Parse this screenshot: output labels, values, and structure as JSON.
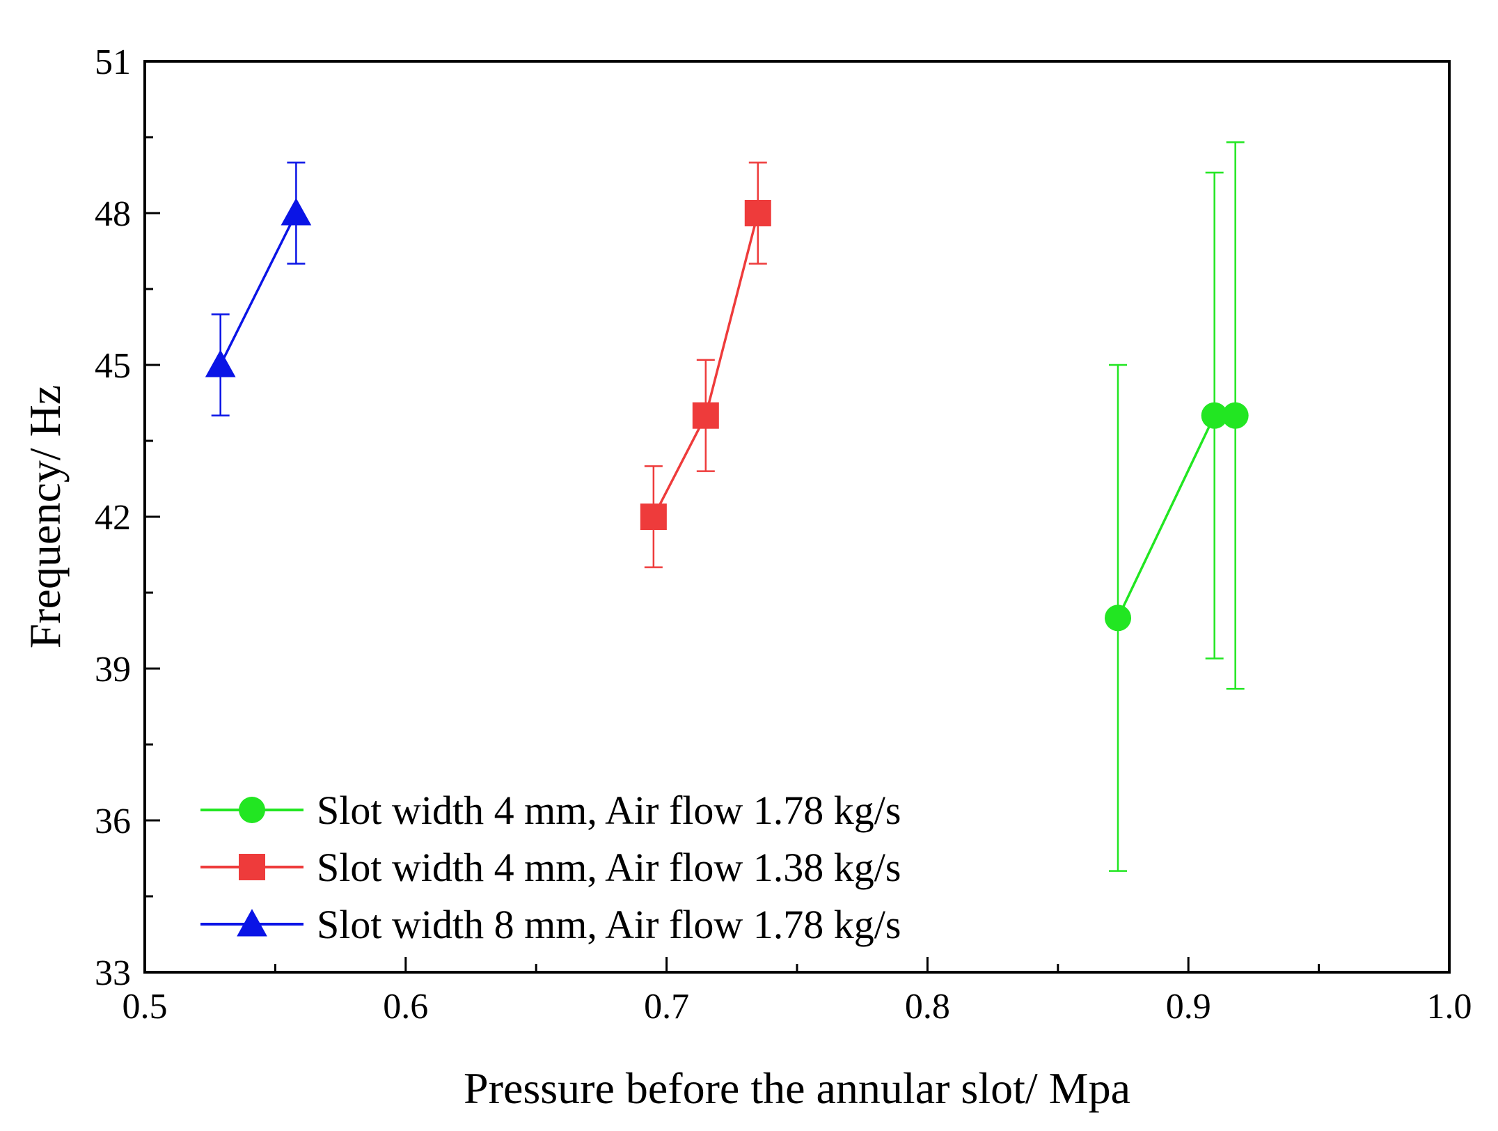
{
  "chart_data": {
    "type": "scatter",
    "title": "",
    "xlabel": "Pressure before the annular slot/ Mpa",
    "ylabel": "Frequency/ Hz",
    "xlim": [
      0.5,
      1.0
    ],
    "ylim": [
      33,
      51
    ],
    "xticks": [
      0.5,
      0.6,
      0.7,
      0.8,
      0.9,
      1.0
    ],
    "xtick_labels": [
      "0.5",
      "0.6",
      "0.7",
      "0.8",
      "0.9",
      "1.0"
    ],
    "yticks": [
      33,
      36,
      39,
      42,
      45,
      48,
      51
    ],
    "ytick_labels": [
      "33",
      "36",
      "39",
      "42",
      "45",
      "48",
      "51"
    ],
    "grid": false,
    "legend_position": "bottom-left",
    "series": [
      {
        "name": "Slot width 4 mm, Air flow 1.78 kg/s",
        "color": "#22e622",
        "marker": "circle",
        "x": [
          0.873,
          0.91,
          0.918
        ],
        "y": [
          40,
          44,
          44
        ],
        "err_low": [
          35.0,
          39.2,
          38.6
        ],
        "err_high": [
          45.0,
          48.8,
          49.4
        ]
      },
      {
        "name": "Slot width 4 mm, Air flow 1.38 kg/s",
        "color": "#ee3b3b",
        "marker": "square",
        "x": [
          0.695,
          0.715,
          0.735
        ],
        "y": [
          42,
          44,
          48
        ],
        "err_low": [
          41.0,
          42.9,
          47.0
        ],
        "err_high": [
          43.0,
          45.1,
          49.0
        ]
      },
      {
        "name": "Slot width 8 mm, Air flow 1.78 kg/s",
        "color": "#0a14e6",
        "marker": "triangle",
        "x": [
          0.529,
          0.558
        ],
        "y": [
          45,
          48
        ],
        "err_low": [
          44.0,
          47.0
        ],
        "err_high": [
          46.0,
          49.0
        ]
      }
    ]
  }
}
